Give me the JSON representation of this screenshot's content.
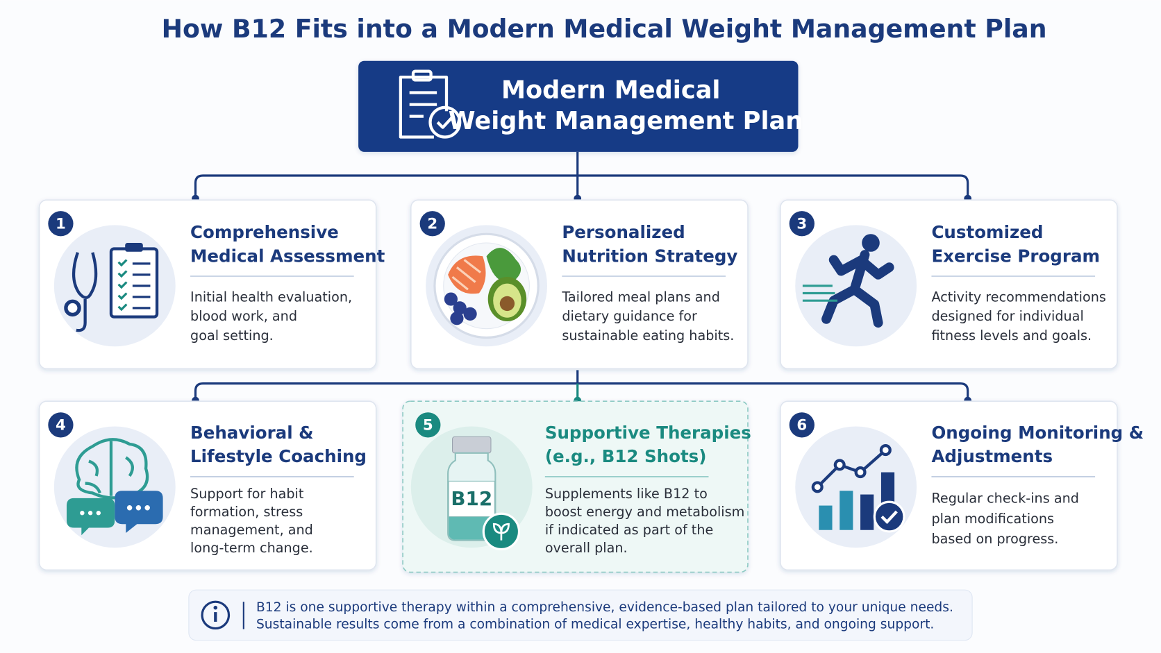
{
  "title": "How B12 Fits into a Modern Medical Weight Management Plan",
  "plan": {
    "lines": [
      "Modern Medical",
      "Weight Management Plan"
    ]
  },
  "steps": [
    {
      "number": "1",
      "title": [
        "Comprehensive",
        "Medical Assessment"
      ],
      "description": [
        "Initial health evaluation,",
        "blood work, and",
        "goal setting."
      ]
    },
    {
      "number": "2",
      "title": [
        "Personalized",
        "Nutrition Strategy"
      ],
      "description": [
        "Tailored meal plans and",
        "dietary guidance for",
        "sustainable eating habits."
      ]
    },
    {
      "number": "3",
      "title": [
        "Customized",
        "Exercise Program"
      ],
      "description": [
        "Activity recommendations",
        "designed for individual",
        "fitness levels and goals."
      ]
    },
    {
      "number": "4",
      "title": [
        "Behavioral &",
        "Lifestyle Coaching"
      ],
      "description": [
        "Support for habit",
        "formation, stress",
        "management, and",
        "long-term change."
      ]
    },
    {
      "number": "5",
      "title": [
        "Supportive Therapies",
        "(e.g., B12 Shots)"
      ],
      "description": [
        "Supplements like B12 to",
        "boost energy and metabolism",
        "if indicated as part of the",
        "overall plan."
      ],
      "icon_label": "B12"
    },
    {
      "number": "6",
      "title": [
        "Ongoing Monitoring &",
        "Adjustments"
      ],
      "description": [
        "Regular check-ins and",
        "plan modifications",
        "based on progress."
      ]
    }
  ],
  "note": {
    "lines": [
      "B12 is one supportive therapy within a comprehensive, evidence-based plan tailored to your unique needs.",
      "Sustainable results come from a combination of medical expertise, healthy habits, and ongoing support."
    ]
  }
}
